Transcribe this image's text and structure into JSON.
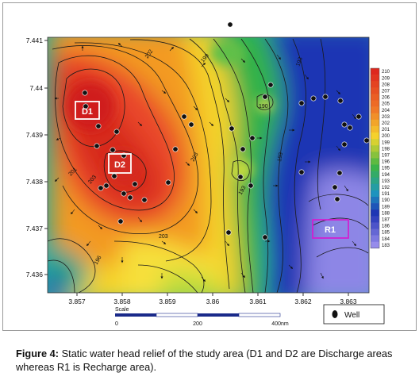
{
  "map": {
    "x_ticks": [
      "3.857",
      "3.858",
      "3.859",
      "3.86",
      "3.861",
      "3.862",
      "3.863"
    ],
    "y_ticks": [
      "7.441",
      "7.44",
      "7.439",
      "7.438",
      "7.437",
      "7.436"
    ],
    "areas": [
      {
        "label": "D1",
        "border_color": "#ffffff"
      },
      {
        "label": "D2",
        "border_color": "#ffffff"
      },
      {
        "label": "R1",
        "border_color": "#d021d0"
      }
    ],
    "contour_labels": [
      "202",
      "199",
      "193",
      "203",
      "201",
      "203",
      "203",
      "190",
      "193",
      "193",
      "196"
    ],
    "legend_values": [
      "210",
      "209",
      "208",
      "207",
      "206",
      "205",
      "204",
      "203",
      "202",
      "201",
      "200",
      "199",
      "198",
      "197",
      "196",
      "195",
      "194",
      "193",
      "192",
      "191",
      "190",
      "189",
      "188",
      "187",
      "186",
      "185",
      "184",
      "183"
    ],
    "colors": {
      "high": "#e8321e",
      "mid": "#f2d22a",
      "green": "#33b24a",
      "low": "#1e36b4",
      "lowest": "#9a8fe8"
    }
  },
  "scale": {
    "title": "Scale",
    "labels": [
      "0",
      "200",
      "400nm"
    ]
  },
  "well_legend": {
    "label": "Well"
  },
  "caption": {
    "prefix": "Figure 4:",
    "text": " Static water head relief of the study area (D1 and D2 are Discharge areas whereas R1 is Recharge area)."
  }
}
